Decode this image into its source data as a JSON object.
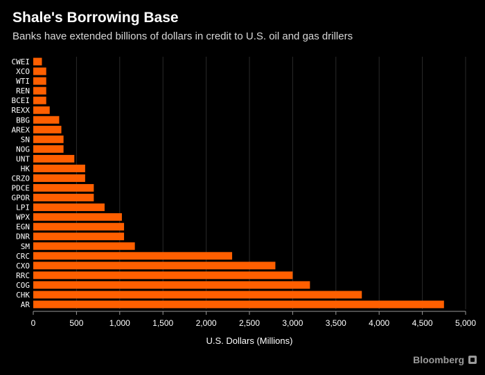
{
  "chart_data": {
    "type": "bar",
    "orientation": "horizontal",
    "title": "Shale's Borrowing Base",
    "subtitle": "Banks have extended billions of dollars in credit to U.S. oil and gas drillers",
    "xlabel": "U.S. Dollars (Millions)",
    "ylabel": "",
    "xlim": [
      0,
      5000
    ],
    "xticks": [
      0,
      500,
      1000,
      1500,
      2000,
      2500,
      3000,
      3500,
      4000,
      4500,
      5000
    ],
    "xtick_labels": [
      "0",
      "500",
      "1,000",
      "1,500",
      "2,000",
      "2,500",
      "3,000",
      "3,500",
      "4,000",
      "4,500",
      "5,000"
    ],
    "categories": [
      "CWEI",
      "XCO",
      "WTI",
      "REN",
      "BCEI",
      "REXX",
      "BBG",
      "AREX",
      "SN",
      "NOG",
      "UNT",
      "HK",
      "CRZO",
      "PDCE",
      "GPOR",
      "LPI",
      "WPX",
      "EGN",
      "DNR",
      "SM",
      "CRC",
      "CXO",
      "RRC",
      "COG",
      "CHK",
      "AR"
    ],
    "values": [
      100,
      150,
      150,
      150,
      150,
      190,
      300,
      325,
      350,
      350,
      475,
      600,
      600,
      700,
      700,
      825,
      1025,
      1050,
      1050,
      1175,
      2300,
      2800,
      3000,
      3200,
      3800,
      4750
    ],
    "grid": true,
    "colors": {
      "bar": "#ff5f00",
      "background": "#000000",
      "grid": "#2a2a2a",
      "text": "#ffffff",
      "axis": "#9a9a9a"
    }
  },
  "brand": {
    "name": "Bloomberg",
    "icon": "bloomberg-logo-icon"
  }
}
